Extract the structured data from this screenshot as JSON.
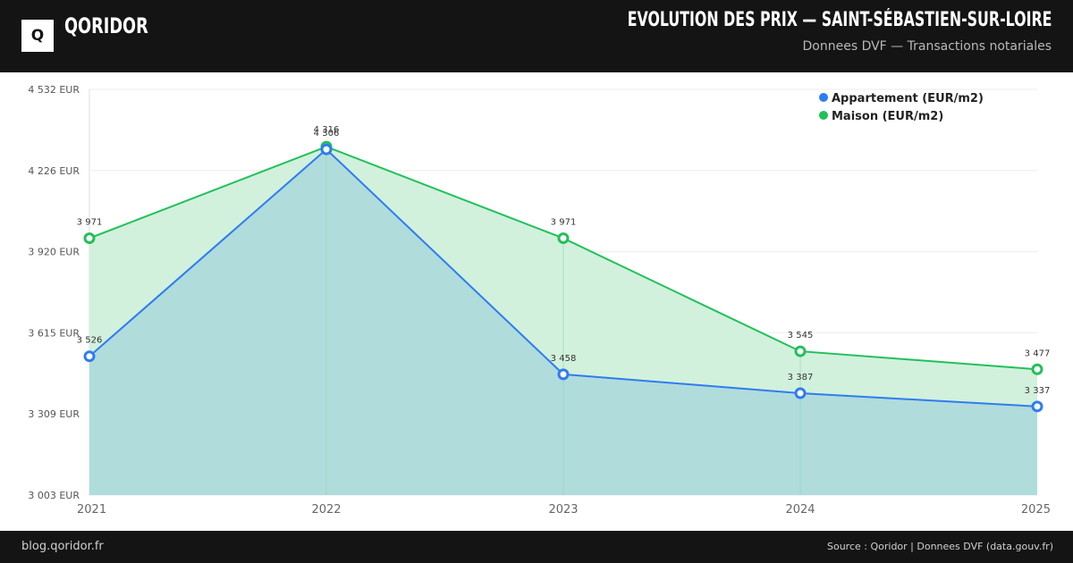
{
  "header": {
    "logo_letter": "Q",
    "brand": "QORIDOR",
    "title": "EVOLUTION DES PRIX — SAINT-SÉBASTIEN-SUR-LOIRE",
    "subtitle": "Donnees DVF — Transactions notariales"
  },
  "footer": {
    "site": "blog.qoridor.fr",
    "source": "Source : Qoridor | Donnees DVF (data.gouv.fr)"
  },
  "colors": {
    "appartement": "#2f7cf0",
    "maison": "#22c05a",
    "appartement_fill": "#b0dcdc",
    "maison_fill": "#d1f1dc"
  },
  "chart_data": {
    "type": "area",
    "x": [
      "2021",
      "2022",
      "2023",
      "2024",
      "2025"
    ],
    "ylim": [
      3003,
      4532
    ],
    "yticks": [
      3003,
      3309,
      3615,
      3920,
      4226,
      4532
    ],
    "ytick_labels": [
      "3 003 EUR",
      "3 309 EUR",
      "3 615 EUR",
      "3 920 EUR",
      "4 226 EUR",
      "4 532 EUR"
    ],
    "grid": true,
    "legend_position": "top-right",
    "series": [
      {
        "name": "Appartement (EUR/m2)",
        "values": [
          3526,
          4306,
          3458,
          3387,
          3337
        ],
        "labels": [
          "3 526",
          "4 306",
          "3 458",
          "3 387",
          "3 337"
        ]
      },
      {
        "name": "Maison (EUR/m2)",
        "values": [
          3971,
          4316,
          3971,
          3545,
          3477
        ],
        "labels": [
          "3 971",
          "4 316",
          "3 971",
          "3 545",
          "3 477"
        ]
      }
    ]
  }
}
